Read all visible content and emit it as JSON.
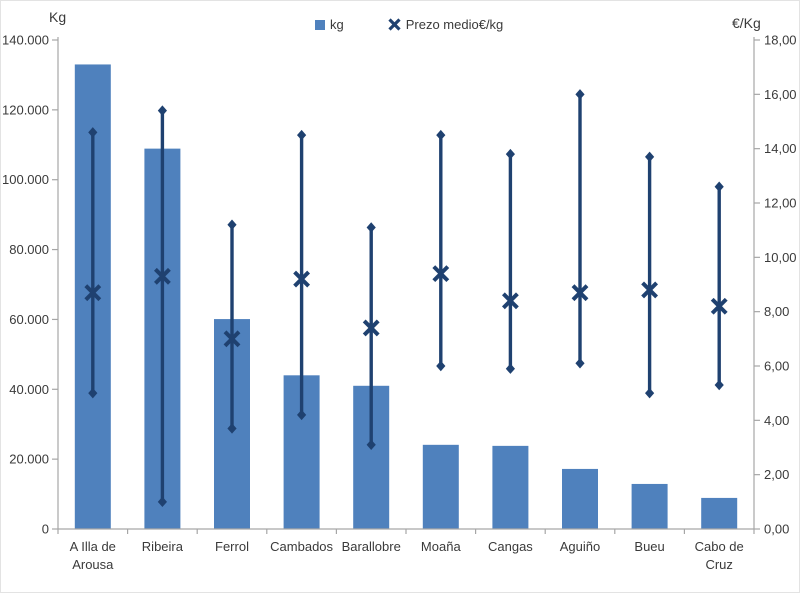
{
  "chart_data": {
    "type": "bar",
    "combo": "bar (left axis) + min/mean/max price range markers (right axis)",
    "title": "",
    "grid": false,
    "legend_position": "top-center",
    "categories": [
      "A Illa de Arousa",
      "Ribeira",
      "Ferrol",
      "Cambados",
      "Barallobre",
      "Moaña",
      "Cangas",
      "Aguiño",
      "Bueu",
      "Cabo de Cruz"
    ],
    "category_label_lines": [
      [
        "A Illa de",
        "Arousa"
      ],
      [
        "Ribeira"
      ],
      [
        "Ferrol"
      ],
      [
        "Cambados"
      ],
      [
        "Barallobre"
      ],
      [
        "Moaña"
      ],
      [
        "Cangas"
      ],
      [
        "Aguiño"
      ],
      [
        "Bueu"
      ],
      [
        "Cabo de",
        "Cruz"
      ]
    ],
    "series": [
      {
        "name": "kg",
        "type": "bar",
        "axis": "left",
        "color": "#4F81BD",
        "values": [
          133000,
          108900,
          60100,
          44000,
          41000,
          24100,
          23800,
          17200,
          12900,
          8900
        ]
      },
      {
        "name": "Prezo medio€/kg",
        "type": "range-with-mean",
        "axis": "right",
        "color": "#1F4170",
        "mean": [
          8.7,
          9.3,
          7.0,
          9.2,
          7.4,
          9.4,
          8.4,
          8.7,
          8.8,
          8.2
        ],
        "min": [
          5.0,
          1.0,
          3.7,
          4.2,
          3.1,
          6.0,
          5.9,
          6.1,
          5.0,
          5.3
        ],
        "max": [
          14.6,
          15.4,
          11.2,
          14.5,
          11.1,
          14.5,
          13.8,
          16.0,
          13.7,
          12.6
        ]
      }
    ],
    "left_axis": {
      "title": "Kg",
      "min": 0,
      "max": 140000,
      "step": 20000,
      "tick_labels": [
        "0",
        "20.000",
        "40.000",
        "60.000",
        "80.000",
        "100.000",
        "120.000",
        "140.000"
      ]
    },
    "right_axis": {
      "title": "€/Kg",
      "min": 0,
      "max": 18,
      "step": 2,
      "tick_labels": [
        "0,00",
        "2,00",
        "4,00",
        "6,00",
        "8,00",
        "10,00",
        "12,00",
        "14,00",
        "16,00",
        "18,00"
      ]
    },
    "axis_color": "#A6A6A6",
    "text_color": "#3a3a3a"
  }
}
